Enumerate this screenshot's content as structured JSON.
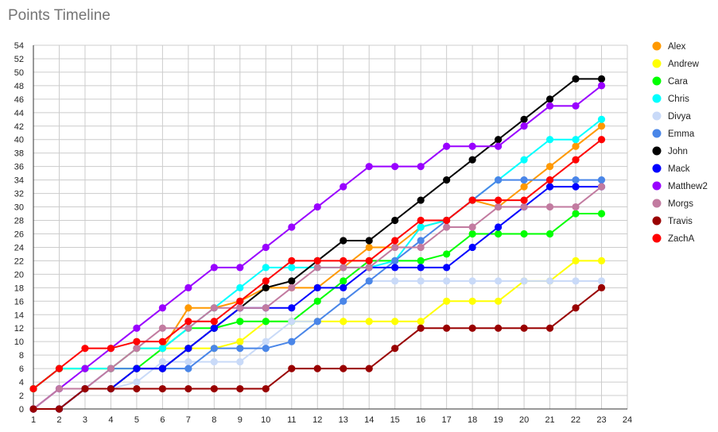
{
  "chart_data": {
    "type": "line",
    "title": "Points Timeline",
    "xlabel": "",
    "ylabel": "",
    "x": [
      1,
      2,
      3,
      4,
      5,
      6,
      7,
      8,
      9,
      10,
      11,
      12,
      13,
      14,
      15,
      16,
      17,
      18,
      19,
      20,
      21,
      22,
      23
    ],
    "xlim": [
      1,
      24
    ],
    "ylim": [
      0,
      54
    ],
    "x_ticks": [
      1,
      2,
      3,
      4,
      5,
      6,
      7,
      8,
      9,
      10,
      11,
      12,
      13,
      14,
      15,
      16,
      17,
      18,
      19,
      20,
      21,
      22,
      23,
      24
    ],
    "y_ticks": [
      0,
      2,
      4,
      6,
      8,
      10,
      12,
      14,
      16,
      18,
      20,
      22,
      24,
      26,
      28,
      30,
      32,
      34,
      36,
      38,
      40,
      42,
      44,
      46,
      48,
      50,
      52,
      54
    ],
    "grid": true,
    "legend_position": "right",
    "series": [
      {
        "name": "Alex",
        "color": "#ff9900",
        "values": [
          3,
          6,
          6,
          6,
          9,
          9,
          15,
          15,
          16,
          18,
          18,
          18,
          21,
          24,
          24,
          27,
          28,
          31,
          30,
          33,
          36,
          39,
          42
        ]
      },
      {
        "name": "Andrew",
        "color": "#ffff00",
        "values": [
          3,
          6,
          6,
          6,
          9,
          9,
          9,
          9,
          10,
          13,
          13,
          13,
          13,
          13,
          13,
          13,
          16,
          16,
          16,
          19,
          19,
          22,
          22
        ]
      },
      {
        "name": "Cara",
        "color": "#00ff00",
        "values": [
          3,
          6,
          6,
          6,
          6,
          9,
          12,
          12,
          13,
          13,
          13,
          16,
          19,
          22,
          22,
          22,
          23,
          26,
          26,
          26,
          26,
          29,
          29
        ]
      },
      {
        "name": "Chris",
        "color": "#00ffff",
        "values": [
          3,
          6,
          6,
          6,
          9,
          9,
          12,
          15,
          18,
          21,
          21,
          21,
          21,
          21,
          22,
          27,
          28,
          31,
          34,
          37,
          40,
          40,
          43
        ]
      },
      {
        "name": "Divya",
        "color": "#c9daf8",
        "values": [
          0,
          3,
          3,
          3,
          4,
          7,
          7,
          7,
          7,
          10,
          13,
          13,
          16,
          19,
          19,
          19,
          19,
          19,
          19,
          19,
          19,
          19,
          19
        ]
      },
      {
        "name": "Emma",
        "color": "#4a86e8",
        "values": [
          0,
          3,
          3,
          6,
          6,
          6,
          6,
          9,
          9,
          9,
          10,
          13,
          16,
          19,
          22,
          25,
          28,
          31,
          34,
          34,
          34,
          34,
          34
        ]
      },
      {
        "name": "John",
        "color": "#000000",
        "values": [
          0,
          0,
          3,
          3,
          6,
          6,
          9,
          12,
          15,
          18,
          19,
          22,
          25,
          25,
          28,
          31,
          34,
          37,
          40,
          43,
          46,
          49,
          49
        ]
      },
      {
        "name": "Mack",
        "color": "#0000ff",
        "values": [
          0,
          0,
          3,
          3,
          6,
          6,
          9,
          12,
          15,
          15,
          15,
          18,
          18,
          21,
          21,
          21,
          21,
          24,
          27,
          30,
          33,
          33,
          33
        ]
      },
      {
        "name": "Matthew2",
        "color": "#9900ff",
        "values": [
          0,
          3,
          6,
          9,
          12,
          15,
          18,
          21,
          21,
          24,
          27,
          30,
          33,
          36,
          36,
          36,
          39,
          39,
          39,
          42,
          45,
          45,
          48
        ]
      },
      {
        "name": "Morgs",
        "color": "#c27ba0",
        "values": [
          0,
          3,
          3,
          6,
          9,
          12,
          12,
          15,
          15,
          15,
          18,
          21,
          21,
          21,
          24,
          24,
          27,
          27,
          30,
          30,
          30,
          30,
          33
        ]
      },
      {
        "name": "Travis",
        "color": "#990000",
        "values": [
          0,
          0,
          3,
          3,
          3,
          3,
          3,
          3,
          3,
          3,
          6,
          6,
          6,
          6,
          9,
          12,
          12,
          12,
          12,
          12,
          12,
          15,
          18
        ]
      },
      {
        "name": "ZachA",
        "color": "#ff0000",
        "values": [
          3,
          6,
          9,
          9,
          10,
          10,
          13,
          13,
          16,
          19,
          22,
          22,
          22,
          22,
          25,
          28,
          28,
          31,
          31,
          31,
          34,
          37,
          40
        ]
      }
    ]
  }
}
